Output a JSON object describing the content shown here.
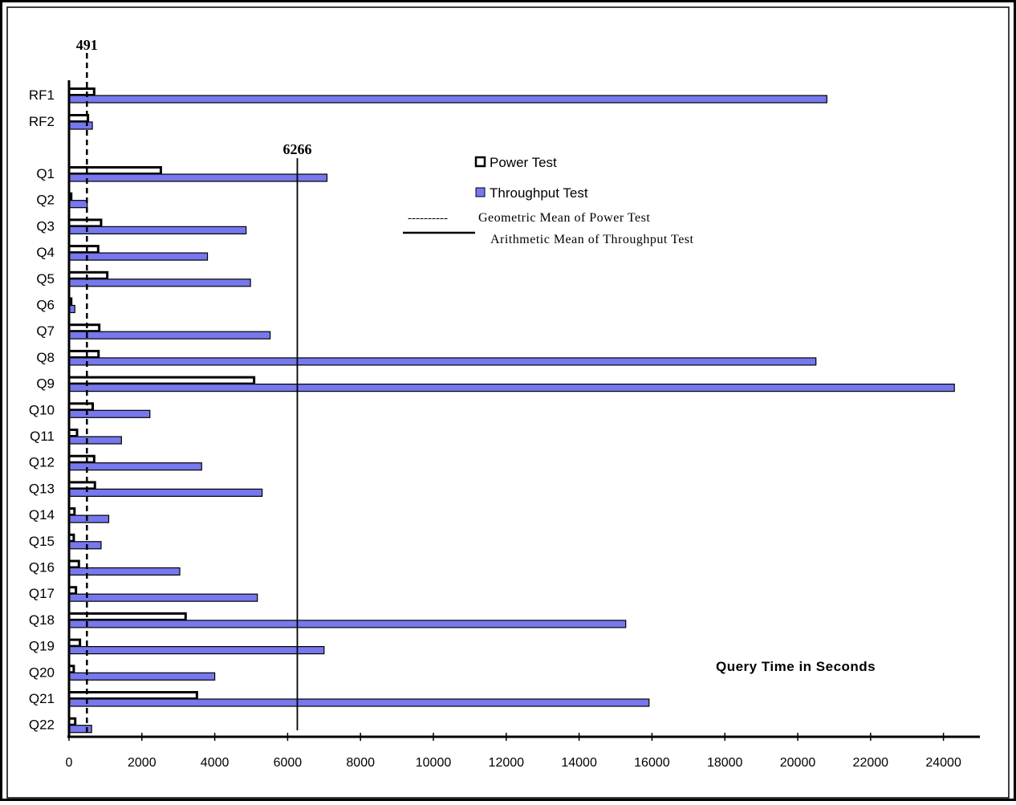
{
  "chart_data": {
    "type": "bar",
    "orientation": "horizontal",
    "categories": [
      "RF1",
      "RF2",
      "Q1",
      "Q2",
      "Q3",
      "Q4",
      "Q5",
      "Q6",
      "Q7",
      "Q8",
      "Q9",
      "Q10",
      "Q11",
      "Q12",
      "Q13",
      "Q14",
      "Q15",
      "Q16",
      "Q17",
      "Q18",
      "Q19",
      "Q20",
      "Q21",
      "Q22"
    ],
    "series": [
      {
        "name": "Power Test",
        "color": "#ffffff",
        "stroke": "#000000",
        "values": [
          690,
          520,
          2520,
          60,
          880,
          800,
          1050,
          60,
          830,
          810,
          5080,
          650,
          220,
          690,
          710,
          150,
          130,
          270,
          190,
          3200,
          300,
          130,
          3510,
          170
        ]
      },
      {
        "name": "Throughput Test",
        "color": "#7777ee",
        "stroke": "#000000",
        "values": [
          20800,
          640,
          7080,
          500,
          4860,
          3800,
          4980,
          160,
          5520,
          20500,
          24300,
          2220,
          1440,
          3640,
          5300,
          1090,
          880,
          3040,
          5170,
          15280,
          7000,
          4000,
          15920,
          620
        ]
      }
    ],
    "reference_lines": [
      {
        "label": "491",
        "value": 491,
        "style": "dashed",
        "legend": "Geometric Mean of Power Test",
        "legend_marker": "----------"
      },
      {
        "label": "6266",
        "value": 6266,
        "style": "solid",
        "legend": "Arithmetic Mean of Throughput Test"
      }
    ],
    "xlabel": "Query Time in Seconds",
    "xlim": [
      0,
      25000
    ],
    "xticks": [
      0,
      2000,
      4000,
      6000,
      8000,
      10000,
      12000,
      14000,
      16000,
      18000,
      20000,
      22000,
      24000
    ],
    "grid": false,
    "legend_position": "top-right"
  }
}
